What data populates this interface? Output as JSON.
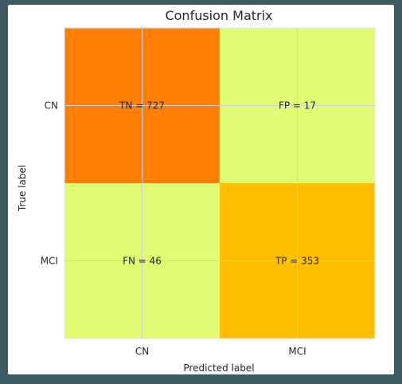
{
  "chart_data": {
    "type": "heatmap",
    "title": "Confusion Matrix",
    "xlabel": "Predicted label",
    "ylabel": "True label",
    "x_categories": [
      "CN",
      "MCI"
    ],
    "y_categories": [
      "CN",
      "MCI"
    ],
    "cells": [
      {
        "row": 0,
        "col": 0,
        "label": "TN = 727",
        "value": 727,
        "color": "#ff7f00"
      },
      {
        "row": 0,
        "col": 1,
        "label": "FP = 17",
        "value": 17,
        "color": "#e1fc73"
      },
      {
        "row": 1,
        "col": 0,
        "label": "FN = 46",
        "value": 46,
        "color": "#e1fc73"
      },
      {
        "row": 1,
        "col": 1,
        "label": "TP = 353",
        "value": 353,
        "color": "#ffbf00"
      }
    ],
    "grid": true,
    "colormap": "Wistia"
  }
}
